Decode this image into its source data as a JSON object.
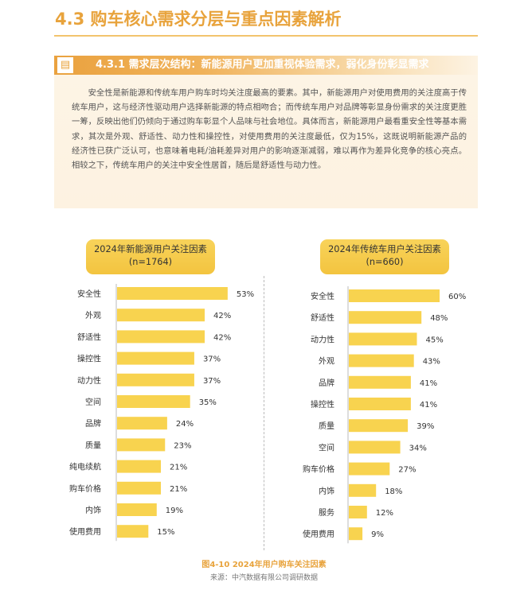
{
  "section_title": "4.3 购车核心需求分层与重点因素解析",
  "subsection": {
    "icon": "document-icon",
    "title": "4.3.1 需求层次结构：新能源用户更加重视体验需求，弱化身份彰显需求"
  },
  "paragraph": "安全性是新能源和传统车用户购车时均关注度最高的要素。其中，新能源用户对使用费用的关注度高于传统车用户，这与经济性驱动用户选择新能源的特点相吻合；而传统车用户对品牌等彰显身份需求的关注度更胜一筹，反映出他们仍倾向于通过购车彰显个人品味与社会地位。具体而言，新能源用户最看重安全性等基本需求，其次是外观、舒适性、动力性和操控性，对使用费用的关注度最低，仅为15%，这既说明新能源产品的经济性已获广泛认可，也意味着电耗/油耗差异对用户的影响逐渐减弱，难以再作为差异化竞争的核心亮点。相较之下，传统车用户的关注中安全性居首，随后是舒适性与动力性。",
  "colors": {
    "accent": "#E8A33C",
    "bar": "#F8D34F",
    "panel": "#F5C94A",
    "divider": "#BBBBBB"
  },
  "chart_data": [
    {
      "type": "bar",
      "orientation": "horizontal",
      "title": "2024年新能源用户关注因素",
      "subtitle": "(n=1764)",
      "categories": [
        "安全性",
        "外观",
        "舒适性",
        "操控性",
        "动力性",
        "空间",
        "品牌",
        "质量",
        "纯电续航",
        "购车价格",
        "内饰",
        "使用费用"
      ],
      "values": [
        53,
        42,
        42,
        37,
        37,
        35,
        24,
        23,
        21,
        21,
        19,
        15
      ],
      "value_suffix": "%",
      "xlim": [
        0,
        100
      ],
      "grid": false,
      "legend": "none"
    },
    {
      "type": "bar",
      "orientation": "horizontal",
      "title": "2024年传统车用户关注因素",
      "subtitle": "(n=660)",
      "categories": [
        "安全性",
        "舒适性",
        "动力性",
        "外观",
        "品牌",
        "操控性",
        "质量",
        "空间",
        "购车价格",
        "内饰",
        "服务",
        "使用费用"
      ],
      "values": [
        60,
        48,
        45,
        43,
        41,
        41,
        39,
        34,
        27,
        18,
        12,
        9
      ],
      "value_suffix": "%",
      "xlim": [
        0,
        100
      ],
      "grid": false,
      "legend": "none"
    }
  ],
  "caption": "图4-10 2024年用户购车关注因素",
  "source": "来源：中汽数据有限公司调研数据"
}
